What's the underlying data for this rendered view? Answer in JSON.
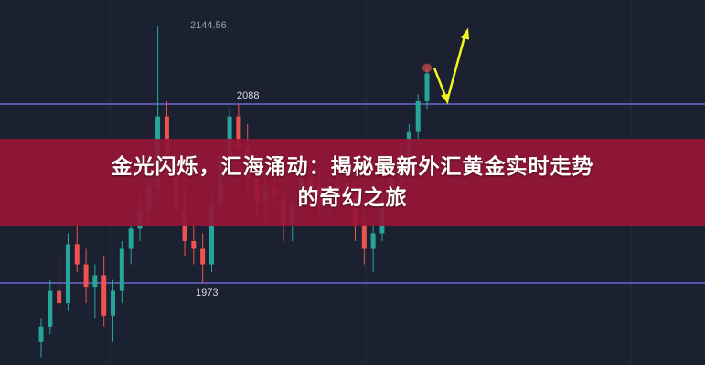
{
  "banner": {
    "line1": "金光闪烁，汇海涌动：揭秘最新外汇黄金实时走势",
    "line2": "的奇幻之旅"
  },
  "chart_data": {
    "type": "candlestick",
    "annotations": {
      "high_label": "2144.56",
      "resistance_label": "2088",
      "support_label": "1973"
    },
    "levels": {
      "high": 2144.56,
      "resistance": 2088,
      "support": 1973,
      "current": 2114
    },
    "colors": {
      "background": "#1b2130",
      "up": "#26a69a",
      "down": "#ef5350",
      "level_line": "#5555aa",
      "arrow": "#f5f51e",
      "banner": "#961637"
    },
    "projection_arrow": "down-then-up",
    "candles": [
      [
        1935,
        1950,
        1925,
        1945
      ],
      [
        1945,
        1975,
        1940,
        1968
      ],
      [
        1968,
        1990,
        1955,
        1960
      ],
      [
        1960,
        2005,
        1955,
        1998
      ],
      [
        1998,
        2012,
        1980,
        1985
      ],
      [
        1985,
        1995,
        1960,
        1970
      ],
      [
        1970,
        1985,
        1950,
        1978
      ],
      [
        1978,
        1990,
        1945,
        1952
      ],
      [
        1952,
        1975,
        1935,
        1968
      ],
      [
        1968,
        2000,
        1960,
        1995
      ],
      [
        1995,
        2015,
        1985,
        2008
      ],
      [
        2008,
        2030,
        2000,
        2020
      ],
      [
        2020,
        2040,
        2010,
        2035
      ],
      [
        2035,
        2144.56,
        2025,
        2080
      ],
      [
        2080,
        2090,
        2040,
        2050
      ],
      [
        2050,
        2065,
        2010,
        2020
      ],
      [
        2020,
        2035,
        1990,
        2000
      ],
      [
        2000,
        2015,
        1985,
        1995
      ],
      [
        1995,
        2005,
        1973,
        1985
      ],
      [
        1985,
        2030,
        1980,
        2025
      ],
      [
        2025,
        2060,
        2020,
        2055
      ],
      [
        2055,
        2085,
        2050,
        2080
      ],
      [
        2080,
        2088,
        2050,
        2060
      ],
      [
        2060,
        2075,
        2030,
        2040
      ],
      [
        2040,
        2055,
        2015,
        2025
      ],
      [
        2025,
        2045,
        2010,
        2035
      ],
      [
        2035,
        2050,
        2020,
        2030
      ],
      [
        2030,
        2045,
        2000,
        2010
      ],
      [
        2010,
        2030,
        2000,
        2025
      ],
      [
        2025,
        2050,
        2015,
        2040
      ],
      [
        2040,
        2055,
        2025,
        2035
      ],
      [
        2035,
        2045,
        2015,
        2022
      ],
      [
        2022,
        2040,
        2010,
        2030
      ],
      [
        2030,
        2045,
        2020,
        2038
      ],
      [
        2038,
        2050,
        2020,
        2028
      ],
      [
        2028,
        2035,
        2000,
        2010
      ],
      [
        2010,
        2020,
        1985,
        1995
      ],
      [
        1995,
        2010,
        1980,
        2005
      ],
      [
        2005,
        2030,
        2000,
        2025
      ],
      [
        2025,
        2045,
        2020,
        2040
      ],
      [
        2040,
        2060,
        2035,
        2055
      ],
      [
        2055,
        2075,
        2050,
        2070
      ],
      [
        2070,
        2095,
        2065,
        2090
      ],
      [
        2090,
        2114,
        2085,
        2110
      ]
    ]
  }
}
